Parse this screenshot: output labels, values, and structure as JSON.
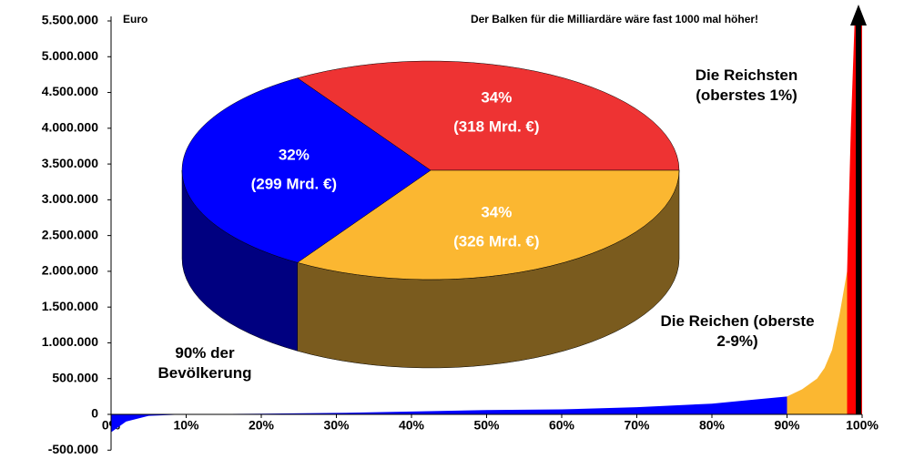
{
  "chart_data": [
    {
      "type": "area",
      "y_label": "Euro",
      "annotation": "Der Balken für die Milliardäre wäre fast 1000 mal höher!",
      "ylim": [
        -500000,
        5500000
      ],
      "yticks": [
        {
          "value": -500000,
          "label": "-500.000"
        },
        0,
        {
          "value": 500000,
          "label": "500.000"
        },
        {
          "value": 1000000,
          "label": "1.000.000"
        },
        {
          "value": 1500000,
          "label": "1.500.000"
        },
        {
          "value": 2000000,
          "label": "2.000.000"
        },
        {
          "value": 2500000,
          "label": "2.500.000"
        },
        {
          "value": 3000000,
          "label": "3.000.000"
        },
        {
          "value": 3500000,
          "label": "3.500.000"
        },
        {
          "value": 4000000,
          "label": "4.000.000"
        },
        {
          "value": 4500000,
          "label": "4.500.000"
        },
        {
          "value": 5000000,
          "label": "5.000.000"
        },
        {
          "value": 5500000,
          "label": "5.500.000"
        }
      ],
      "xlim": [
        0,
        100
      ],
      "xticks": [
        {
          "value": 0,
          "label": "0%"
        },
        {
          "value": 10,
          "label": "10%"
        },
        {
          "value": 20,
          "label": "20%"
        },
        {
          "value": 30,
          "label": "30%"
        },
        {
          "value": 40,
          "label": "40%"
        },
        {
          "value": 50,
          "label": "50%"
        },
        {
          "value": 60,
          "label": "60%"
        },
        {
          "value": 70,
          "label": "70%"
        },
        {
          "value": 80,
          "label": "80%"
        },
        {
          "value": 90,
          "label": "90%"
        },
        {
          "value": 100,
          "label": "100%"
        }
      ],
      "series": [
        {
          "name": "90% der Bevölkerung",
          "color": "#0000ff",
          "x": [
            0,
            2,
            5,
            10,
            20,
            30,
            40,
            50,
            60,
            70,
            80,
            85,
            90
          ],
          "values": [
            -250000,
            -100000,
            -20000,
            0,
            10000,
            20000,
            40000,
            60000,
            70000,
            100000,
            150000,
            200000,
            250000
          ]
        },
        {
          "name": "Die Reichen (oberste 2-9%)",
          "color": "#fbb731",
          "x": [
            90,
            92,
            94,
            95,
            96,
            97,
            98
          ],
          "values": [
            250000,
            350000,
            500000,
            650000,
            900000,
            1400000,
            2000000
          ]
        },
        {
          "name": "Die Reichsten (oberstes 1%)",
          "color": "#ff0000",
          "x": [
            98,
            98.5,
            99,
            100
          ],
          "values": [
            2000000,
            4000000,
            5500000,
            5500000
          ]
        }
      ]
    },
    {
      "type": "pie",
      "values": [
        34,
        34,
        32
      ],
      "value_labels": [
        "34%",
        "34%",
        "32%"
      ],
      "amount_labels": [
        "(318 Mrd. €)",
        "(326 Mrd. €)",
        "(299 Mrd. €)"
      ],
      "colors": [
        "#ee3333",
        "#fbb731",
        "#0000ff"
      ],
      "side_colors": [
        "#8a1a1a",
        "#7a5b1e",
        "#000080"
      ]
    }
  ]
}
